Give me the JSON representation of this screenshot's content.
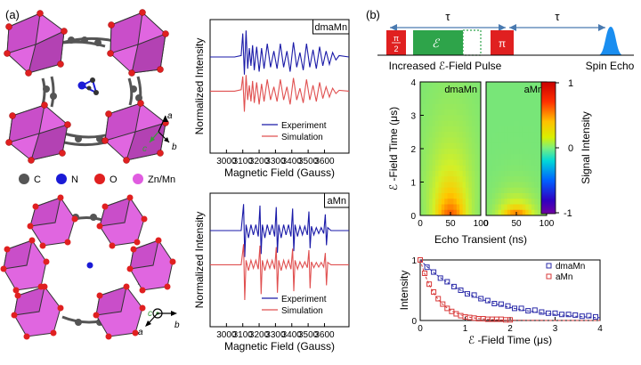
{
  "panel_a": {
    "label": "(a)",
    "axis_labels": {
      "a": "a",
      "b": "b",
      "c": "c"
    },
    "legend": [
      {
        "label": "C",
        "color": "#555555"
      },
      {
        "label": "N",
        "color": "#1a1ad6"
      },
      {
        "label": "O",
        "color": "#e02020"
      },
      {
        "label": "Zn/Mn",
        "color": "#e05ce0"
      }
    ]
  },
  "panel_b": {
    "label": "(b)",
    "tau": "τ",
    "pulse_half": {
      "num": "π",
      "den": "2"
    },
    "pulse_pi": "π",
    "efield_symbol": "ℰ",
    "caption_left": "Increased ℰ-Field Pulse",
    "caption_right": "Spin Echo"
  },
  "colorbar": {
    "title": "Signal Intensity",
    "ticks": [
      "1",
      "0",
      "-1"
    ]
  },
  "chart_data": [
    {
      "type": "line",
      "id": "epr-dmaMn",
      "tag": "dmaMn",
      "ylabel": "Normalized Intensity",
      "xlabel": "Magnetic Field (Gauss)",
      "xlim": [
        2900,
        3750
      ],
      "xticks": [
        "3000",
        "3100",
        "3200",
        "3300",
        "3400",
        "3500",
        "3600"
      ],
      "legend": [
        "Experiment",
        "Simulation"
      ],
      "series": [
        {
          "name": "Experiment",
          "color": "#1a1aa8",
          "offset": 1.0,
          "x": [
            2900,
            3050,
            3090,
            3100,
            3110,
            3120,
            3130,
            3140,
            3150,
            3160,
            3170,
            3185,
            3200,
            3215,
            3230,
            3250,
            3270,
            3290,
            3310,
            3330,
            3350,
            3370,
            3390,
            3410,
            3430,
            3450,
            3470,
            3490,
            3510,
            3530,
            3550,
            3570,
            3590,
            3610,
            3630,
            3650,
            3670,
            3690,
            3750
          ],
          "y": [
            0,
            0,
            0.05,
            0.8,
            -0.6,
            0.9,
            -0.4,
            0.3,
            -0.3,
            0.4,
            -0.45,
            0.35,
            -0.5,
            0.3,
            -0.4,
            0.45,
            -0.35,
            0.2,
            -0.4,
            0.45,
            -0.35,
            0.2,
            -0.5,
            0.5,
            -0.35,
            0.15,
            -0.45,
            0.45,
            -0.35,
            0.25,
            -0.4,
            0.35,
            -0.3,
            0.2,
            -0.25,
            0.15,
            -0.1,
            0.05,
            0
          ]
        },
        {
          "name": "Simulation",
          "color": "#e05050",
          "offset": -0.2,
          "x": [
            2900,
            3050,
            3090,
            3100,
            3110,
            3120,
            3130,
            3140,
            3150,
            3160,
            3170,
            3185,
            3200,
            3215,
            3230,
            3250,
            3270,
            3290,
            3310,
            3330,
            3350,
            3370,
            3390,
            3410,
            3430,
            3450,
            3470,
            3490,
            3510,
            3530,
            3550,
            3570,
            3590,
            3610,
            3630,
            3650,
            3670,
            3690,
            3750
          ],
          "y": [
            0,
            0,
            0.05,
            0.5,
            -0.7,
            0.55,
            -0.3,
            0.2,
            -0.35,
            0.35,
            -0.4,
            0.3,
            -0.45,
            0.25,
            -0.35,
            0.4,
            -0.3,
            0.15,
            -0.35,
            0.4,
            -0.3,
            0.15,
            -0.45,
            0.45,
            -0.3,
            0.1,
            -0.4,
            0.4,
            -0.3,
            0.2,
            -0.35,
            0.3,
            -0.25,
            0.15,
            -0.2,
            0.1,
            -0.08,
            0.03,
            0
          ]
        }
      ]
    },
    {
      "type": "line",
      "id": "epr-aMn",
      "tag": "aMn",
      "ylabel": "Normalized Intensity",
      "xlabel": "Magnetic Field (Gauss)",
      "xlim": [
        2900,
        3750
      ],
      "xticks": [
        "3000",
        "3100",
        "3200",
        "3300",
        "3400",
        "3500",
        "3600"
      ],
      "legend": [
        "Experiment",
        "Simulation"
      ],
      "series": [
        {
          "name": "Experiment",
          "color": "#1a1aa8",
          "offset": 1.0,
          "x": [
            2900,
            3090,
            3105,
            3112,
            3120,
            3135,
            3150,
            3165,
            3180,
            3195,
            3205,
            3212,
            3220,
            3235,
            3250,
            3265,
            3280,
            3295,
            3305,
            3312,
            3320,
            3335,
            3350,
            3365,
            3380,
            3395,
            3405,
            3412,
            3420,
            3435,
            3450,
            3465,
            3480,
            3495,
            3505,
            3512,
            3520,
            3535,
            3550,
            3565,
            3580,
            3595,
            3605,
            3612,
            3620,
            3640,
            3750
          ],
          "y": [
            0,
            0,
            0.9,
            -0.9,
            0.2,
            -0.25,
            0.2,
            -0.15,
            0.2,
            -0.2,
            0.85,
            -0.8,
            0.2,
            -0.25,
            0.2,
            -0.15,
            0.2,
            -0.2,
            0.8,
            -0.75,
            0.2,
            -0.25,
            0.2,
            -0.15,
            0.2,
            -0.2,
            0.75,
            -0.7,
            0.2,
            -0.2,
            0.15,
            -0.15,
            0.15,
            -0.15,
            0.65,
            -0.6,
            0.15,
            -0.15,
            0.1,
            -0.1,
            0.1,
            -0.1,
            0.55,
            -0.5,
            0.1,
            0,
            0
          ]
        },
        {
          "name": "Simulation",
          "color": "#e05050",
          "offset": -0.2,
          "x": [
            2900,
            3090,
            3105,
            3112,
            3120,
            3135,
            3150,
            3165,
            3180,
            3195,
            3205,
            3212,
            3220,
            3235,
            3250,
            3265,
            3280,
            3295,
            3305,
            3312,
            3320,
            3335,
            3350,
            3365,
            3380,
            3395,
            3405,
            3412,
            3420,
            3435,
            3450,
            3465,
            3480,
            3495,
            3505,
            3512,
            3520,
            3535,
            3550,
            3565,
            3580,
            3595,
            3605,
            3612,
            3620,
            3640,
            3750
          ],
          "y": [
            0,
            0,
            0.7,
            -1.2,
            0.15,
            -0.2,
            0.15,
            -0.12,
            0.15,
            -0.15,
            0.65,
            -1.0,
            0.15,
            -0.2,
            0.15,
            -0.12,
            0.15,
            -0.15,
            0.6,
            -0.95,
            0.15,
            -0.2,
            0.15,
            -0.12,
            0.15,
            -0.15,
            0.55,
            -0.9,
            0.15,
            -0.15,
            0.1,
            -0.1,
            0.1,
            -0.1,
            0.5,
            -0.8,
            0.1,
            -0.1,
            0.08,
            -0.08,
            0.08,
            -0.08,
            0.4,
            -0.7,
            0.08,
            0,
            0
          ]
        }
      ]
    },
    {
      "type": "heatmap",
      "id": "heat-dmaMn",
      "tag": "dmaMn",
      "ylabel": "ℰ -Field Time (μs)",
      "xlabel": "Echo Transient (ns)",
      "xlim": [
        0,
        100
      ],
      "ylim": [
        0,
        4
      ],
      "xticks": [
        "0",
        "50",
        "100"
      ],
      "yticks": [
        "0",
        "1",
        "2",
        "3",
        "4"
      ],
      "center_x": 50,
      "peak_value": 0.9,
      "decay_time": 1.6
    },
    {
      "type": "heatmap",
      "id": "heat-aMn",
      "tag": "aMn",
      "xlim": [
        0,
        100
      ],
      "ylim": [
        0,
        4
      ],
      "xticks": [
        "0",
        "50",
        "100"
      ],
      "center_x": 50,
      "peak_value": 0.9,
      "decay_time": 0.45
    },
    {
      "type": "scatter",
      "id": "decay",
      "ylabel": "Intensity",
      "xlabel": "ℰ -Field Time (μs)",
      "xlim": [
        0,
        4
      ],
      "ylim": [
        0,
        1
      ],
      "xticks": [
        "0",
        "1",
        "2",
        "3",
        "4"
      ],
      "yticks": [
        "0",
        "1"
      ],
      "legend": [
        "dmaMn",
        "aMn"
      ],
      "series": [
        {
          "name": "dmaMn",
          "color": "#2a2aa8",
          "tau": 1.3,
          "x": [
            0,
            0.15,
            0.3,
            0.45,
            0.6,
            0.75,
            0.9,
            1.05,
            1.2,
            1.35,
            1.5,
            1.65,
            1.8,
            1.95,
            2.1,
            2.25,
            2.4,
            2.55,
            2.7,
            2.85,
            3.0,
            3.15,
            3.3,
            3.45,
            3.6,
            3.75,
            3.9
          ],
          "y": [
            1.0,
            0.88,
            0.8,
            0.7,
            0.64,
            0.56,
            0.5,
            0.44,
            0.42,
            0.36,
            0.33,
            0.28,
            0.27,
            0.24,
            0.2,
            0.2,
            0.16,
            0.17,
            0.14,
            0.12,
            0.12,
            0.1,
            0.1,
            0.09,
            0.07,
            0.08,
            0.06
          ]
        },
        {
          "name": "aMn",
          "color": "#d83a3a",
          "tau": 0.38,
          "x": [
            0,
            0.1,
            0.2,
            0.3,
            0.4,
            0.5,
            0.6,
            0.7,
            0.8,
            0.9,
            1.0,
            1.1,
            1.2,
            1.3,
            1.4,
            1.5,
            1.6,
            1.7,
            1.8,
            1.9,
            2.0
          ],
          "y": [
            1.0,
            0.78,
            0.6,
            0.47,
            0.36,
            0.27,
            0.2,
            0.15,
            0.11,
            0.08,
            0.06,
            0.05,
            0.04,
            0.03,
            0.03,
            0.02,
            0.02,
            0.02,
            0.02,
            0.01,
            0.01
          ]
        }
      ]
    }
  ]
}
